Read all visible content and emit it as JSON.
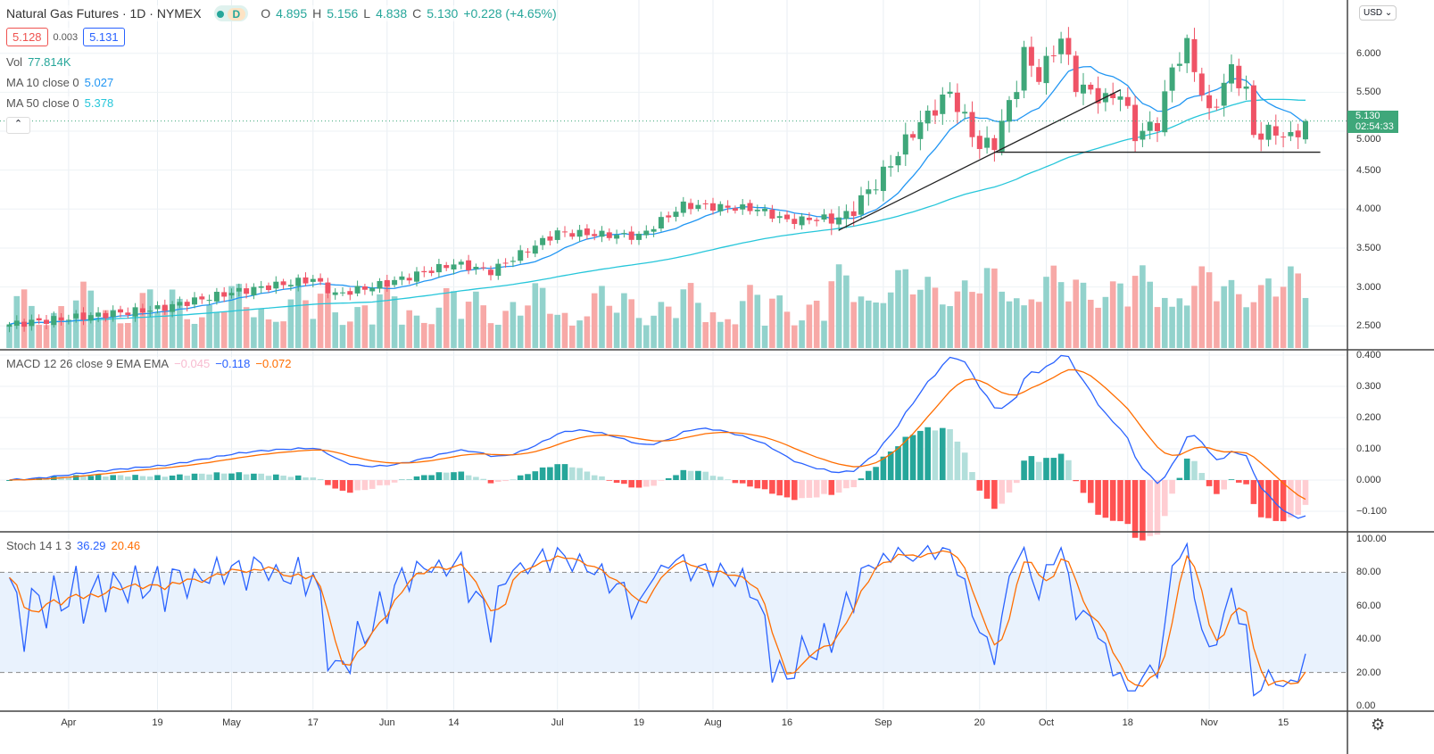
{
  "header": {
    "title": "Natural Gas Futures · 1D · NYMEX",
    "interval_badge": "D",
    "o_label": "O",
    "open": "4.895",
    "h_label": "H",
    "high": "5.156",
    "l_label": "L",
    "low": "4.838",
    "c_label": "C",
    "close": "5.130",
    "change": "+0.228 (+4.65%)",
    "bid": "5.128",
    "spread": "0.003",
    "ask": "5.131"
  },
  "indicators": {
    "vol_label": "Vol",
    "vol_value": "77.814K",
    "ma10_label": "MA 10 close 0",
    "ma10_value": "5.027",
    "ma50_label": "MA 50 close 0",
    "ma50_value": "5.378",
    "macd_label": "MACD 12 26 close 9 EMA EMA",
    "macd_hist": "−0.045",
    "macd_value": "−0.118",
    "macd_signal": "−0.072",
    "stoch_label": "Stoch 14 1 3",
    "stoch_k": "36.29",
    "stoch_d": "20.46"
  },
  "price_axis": {
    "currency": "USD",
    "ticks": [
      "6.000",
      "5.500",
      "5.000",
      "4.500",
      "4.000",
      "3.500",
      "3.000",
      "2.500"
    ],
    "last_price": "5.130",
    "countdown": "02:54:33"
  },
  "macd_axis": {
    "ticks": [
      "0.400",
      "0.300",
      "0.200",
      "0.100",
      "0.000",
      "−0.100"
    ]
  },
  "stoch_axis": {
    "ticks": [
      "100.00",
      "80.00",
      "60.00",
      "40.00",
      "20.00",
      "0.00"
    ]
  },
  "colors": {
    "up": "#26a69a",
    "down": "#ef5350",
    "ma10": "#2196f3",
    "ma50": "#26c6da",
    "macd": "#2962ff",
    "signal": "#ff6d00",
    "stoch_k": "#2962ff",
    "stoch_d": "#ff6d00"
  },
  "chart_data": {
    "type": "candlestick",
    "title": "Natural Gas Futures · 1D · NYMEX",
    "bars": 176,
    "price_path": [
      [
        0,
        2.52
      ],
      [
        8,
        2.6
      ],
      [
        20,
        2.72
      ],
      [
        30,
        2.93
      ],
      [
        41,
        3.1
      ],
      [
        44,
        2.9
      ],
      [
        51,
        3.05
      ],
      [
        60,
        3.3
      ],
      [
        65,
        3.2
      ],
      [
        74,
        3.7
      ],
      [
        85,
        3.65
      ],
      [
        91,
        4.05
      ],
      [
        101,
        4.0
      ],
      [
        105,
        3.85
      ],
      [
        113,
        3.9
      ],
      [
        118,
        4.45
      ],
      [
        122,
        5.0
      ],
      [
        127,
        5.5
      ],
      [
        131,
        4.8
      ],
      [
        133,
        4.85
      ],
      [
        136,
        5.6
      ],
      [
        137,
        6.0
      ],
      [
        139,
        5.7
      ],
      [
        142,
        6.2
      ],
      [
        144,
        5.6
      ],
      [
        148,
        5.4
      ],
      [
        150,
        5.5
      ],
      [
        152,
        4.95
      ],
      [
        155,
        5.1
      ],
      [
        157,
        5.8
      ],
      [
        159,
        6.1
      ],
      [
        161,
        5.5
      ],
      [
        162,
        5.2
      ],
      [
        164,
        5.6
      ],
      [
        165,
        5.8
      ],
      [
        167,
        5.5
      ],
      [
        168,
        4.95
      ],
      [
        171,
        5.0
      ],
      [
        173,
        4.9
      ],
      [
        175,
        5.13
      ]
    ],
    "ylim": [
      2.4,
      6.4
    ],
    "time_labels": [
      [
        "Apr",
        8
      ],
      [
        "19",
        20
      ],
      [
        "May",
        30
      ],
      [
        "17",
        41
      ],
      [
        "Jun",
        51
      ],
      [
        "14",
        60
      ],
      [
        "Jul",
        74
      ],
      [
        "19",
        85
      ],
      [
        "Aug",
        95
      ],
      [
        "16",
        105
      ],
      [
        "Sep",
        118
      ],
      [
        "20",
        131
      ],
      [
        "Oct",
        140
      ],
      [
        "18",
        151
      ],
      [
        "Nov",
        162
      ],
      [
        "15",
        172
      ]
    ],
    "trendlines": [
      {
        "from": [
          112,
          3.73
        ],
        "to": [
          150,
          5.53
        ]
      },
      {
        "from": [
          133,
          4.73
        ],
        "to": [
          177,
          4.73
        ]
      }
    ],
    "stoch_bands": [
      20,
      80
    ]
  }
}
